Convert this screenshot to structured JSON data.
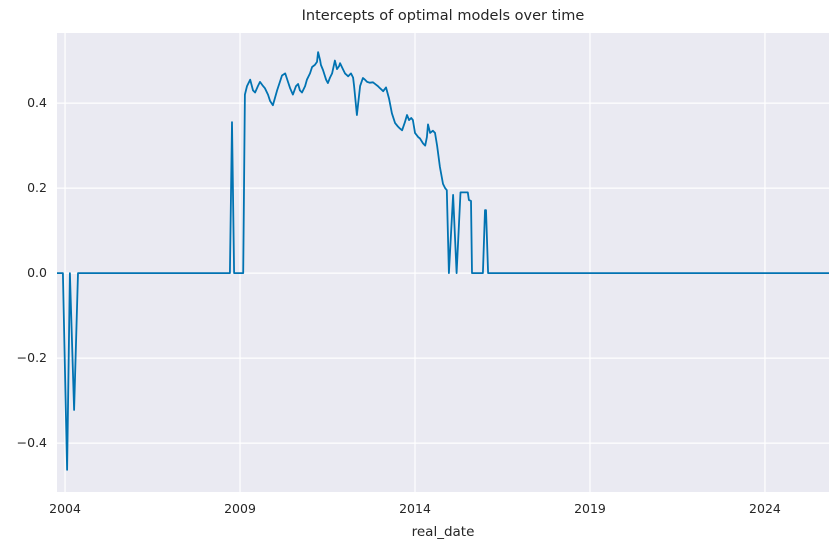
{
  "chart_data": {
    "type": "line",
    "title": "Intercepts of optimal models over time",
    "xlabel": "real_date",
    "ylabel": "",
    "grid": true,
    "legend": null,
    "xlim": [
      2003.77,
      2025.83
    ],
    "ylim": [
      -0.515,
      0.565
    ],
    "xticks": {
      "values": [
        2004,
        2009,
        2014,
        2019,
        2024
      ],
      "labels": [
        "2004",
        "2009",
        "2014",
        "2019",
        "2024"
      ]
    },
    "yticks": {
      "values": [
        0.4,
        0.2,
        0.0,
        -0.2,
        -0.4
      ],
      "labels": [
        "0.4",
        "0.2",
        "0.0",
        "−0.2",
        "−0.4"
      ]
    },
    "styles": {
      "figure_bg": "#ffffff",
      "axes_bg": "#eaeaf2",
      "grid_color": "#ffffff",
      "text_color": "#262626",
      "line_color": "#0173b2",
      "line_width": 1.8
    },
    "series": [
      {
        "name": "intercept",
        "color": "#0173b2",
        "points": [
          [
            2003.77,
            0
          ],
          [
            2003.94,
            0
          ],
          [
            2004.06,
            -0.463
          ],
          [
            2004.14,
            0
          ],
          [
            2004.26,
            -0.322
          ],
          [
            2004.37,
            0
          ],
          [
            2008.71,
            0
          ],
          [
            2008.77,
            0.355
          ],
          [
            2008.83,
            0
          ],
          [
            2009.09,
            0
          ],
          [
            2009.14,
            0.42
          ],
          [
            2009.2,
            0.44
          ],
          [
            2009.29,
            0.455
          ],
          [
            2009.37,
            0.43
          ],
          [
            2009.43,
            0.425
          ],
          [
            2009.51,
            0.44
          ],
          [
            2009.57,
            0.45
          ],
          [
            2009.66,
            0.44
          ],
          [
            2009.71,
            0.435
          ],
          [
            2009.8,
            0.42
          ],
          [
            2009.86,
            0.405
          ],
          [
            2009.94,
            0.395
          ],
          [
            2010.06,
            0.43
          ],
          [
            2010.14,
            0.45
          ],
          [
            2010.2,
            0.465
          ],
          [
            2010.29,
            0.47
          ],
          [
            2010.37,
            0.45
          ],
          [
            2010.43,
            0.435
          ],
          [
            2010.51,
            0.42
          ],
          [
            2010.6,
            0.44
          ],
          [
            2010.66,
            0.445
          ],
          [
            2010.71,
            0.43
          ],
          [
            2010.77,
            0.425
          ],
          [
            2010.86,
            0.44
          ],
          [
            2010.91,
            0.455
          ],
          [
            2011.0,
            0.47
          ],
          [
            2011.06,
            0.485
          ],
          [
            2011.14,
            0.49
          ],
          [
            2011.2,
            0.497
          ],
          [
            2011.23,
            0.52
          ],
          [
            2011.29,
            0.5
          ],
          [
            2011.31,
            0.49
          ],
          [
            2011.37,
            0.478
          ],
          [
            2011.46,
            0.455
          ],
          [
            2011.51,
            0.447
          ],
          [
            2011.57,
            0.46
          ],
          [
            2011.63,
            0.47
          ],
          [
            2011.71,
            0.5
          ],
          [
            2011.77,
            0.48
          ],
          [
            2011.83,
            0.487
          ],
          [
            2011.86,
            0.494
          ],
          [
            2011.94,
            0.48
          ],
          [
            2012.0,
            0.47
          ],
          [
            2012.09,
            0.463
          ],
          [
            2012.17,
            0.47
          ],
          [
            2012.23,
            0.46
          ],
          [
            2012.26,
            0.44
          ],
          [
            2012.34,
            0.372
          ],
          [
            2012.43,
            0.44
          ],
          [
            2012.51,
            0.459
          ],
          [
            2012.57,
            0.455
          ],
          [
            2012.63,
            0.45
          ],
          [
            2012.71,
            0.448
          ],
          [
            2012.8,
            0.449
          ],
          [
            2012.89,
            0.443
          ],
          [
            2012.94,
            0.44
          ],
          [
            2013.0,
            0.435
          ],
          [
            2013.09,
            0.428
          ],
          [
            2013.17,
            0.437
          ],
          [
            2013.26,
            0.41
          ],
          [
            2013.34,
            0.376
          ],
          [
            2013.43,
            0.353
          ],
          [
            2013.51,
            0.345
          ],
          [
            2013.57,
            0.34
          ],
          [
            2013.63,
            0.336
          ],
          [
            2013.71,
            0.355
          ],
          [
            2013.77,
            0.372
          ],
          [
            2013.83,
            0.36
          ],
          [
            2013.89,
            0.365
          ],
          [
            2013.94,
            0.36
          ],
          [
            2014.0,
            0.33
          ],
          [
            2014.09,
            0.32
          ],
          [
            2014.14,
            0.317
          ],
          [
            2014.23,
            0.305
          ],
          [
            2014.29,
            0.3
          ],
          [
            2014.34,
            0.32
          ],
          [
            2014.37,
            0.35
          ],
          [
            2014.43,
            0.33
          ],
          [
            2014.51,
            0.335
          ],
          [
            2014.57,
            0.33
          ],
          [
            2014.63,
            0.3
          ],
          [
            2014.71,
            0.25
          ],
          [
            2014.8,
            0.21
          ],
          [
            2014.86,
            0.2
          ],
          [
            2014.91,
            0.195
          ],
          [
            2014.97,
            0
          ],
          [
            2015.09,
            0.184
          ],
          [
            2015.19,
            0
          ],
          [
            2015.3,
            0.19
          ],
          [
            2015.51,
            0.19
          ],
          [
            2015.54,
            0.172
          ],
          [
            2015.6,
            0.17
          ],
          [
            2015.63,
            0
          ],
          [
            2015.94,
            0
          ],
          [
            2016.0,
            0.148
          ],
          [
            2016.03,
            0.148
          ],
          [
            2016.09,
            0
          ],
          [
            2025.83,
            0
          ]
        ]
      }
    ]
  }
}
